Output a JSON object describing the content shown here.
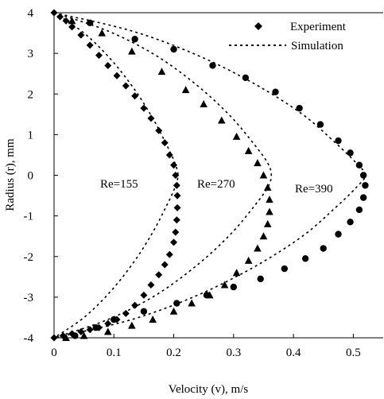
{
  "chart_data": {
    "type": "scatter",
    "xlabel": "Velocity (v), m/s",
    "ylabel": "Radius (r), mm",
    "xlim": [
      0,
      0.55
    ],
    "ylim": [
      -4,
      4
    ],
    "xticks": [
      "0",
      "0.1",
      "0.2",
      "0.3",
      "0.4",
      "0.5"
    ],
    "yticks": [
      "4",
      "3",
      "2",
      "1",
      "0",
      "-1",
      "-2",
      "-3",
      "-4"
    ],
    "legend": {
      "placement": "top-right",
      "experiment_label": "Experiment",
      "simulation_label": "Simulation"
    },
    "annotations": [
      "Re=155",
      "Re=270",
      "Re=390"
    ],
    "series": [
      {
        "name": "Re=155",
        "marker": "diamond",
        "x": [
          0.0,
          0.01,
          0.02,
          0.03,
          0.045,
          0.06,
          0.075,
          0.09,
          0.105,
          0.12,
          0.135,
          0.15,
          0.162,
          0.175,
          0.185,
          0.193,
          0.2,
          0.203,
          0.205,
          0.206,
          0.206,
          0.205,
          0.203,
          0.2,
          0.193,
          0.185,
          0.175,
          0.162,
          0.15,
          0.135,
          0.12,
          0.105,
          0.09,
          0.075,
          0.06,
          0.045,
          0.03,
          0.015,
          0.0
        ],
        "y": [
          4.0,
          3.9,
          3.8,
          3.65,
          3.45,
          3.2,
          2.95,
          2.7,
          2.45,
          2.2,
          1.95,
          1.65,
          1.4,
          1.1,
          0.8,
          0.5,
          0.25,
          0.0,
          -0.25,
          -0.5,
          -0.8,
          -1.1,
          -1.4,
          -1.65,
          -1.95,
          -2.2,
          -2.45,
          -2.7,
          -2.95,
          -3.2,
          -3.4,
          -3.55,
          -3.65,
          -3.75,
          -3.8,
          -3.85,
          -3.9,
          -3.95,
          -4.0
        ]
      },
      {
        "name": "Re=270",
        "marker": "triangle",
        "x": [
          0.03,
          0.08,
          0.13,
          0.18,
          0.22,
          0.25,
          0.28,
          0.305,
          0.325,
          0.34,
          0.35,
          0.357,
          0.36,
          0.36,
          0.357,
          0.35,
          0.34,
          0.325,
          0.305,
          0.285,
          0.26,
          0.23,
          0.2,
          0.165,
          0.13,
          0.09,
          0.05,
          0.02
        ],
        "y": [
          3.8,
          3.5,
          3.05,
          2.55,
          2.1,
          1.75,
          1.35,
          0.95,
          0.6,
          0.3,
          0.0,
          -0.3,
          -0.6,
          -0.9,
          -1.2,
          -1.5,
          -1.8,
          -2.1,
          -2.4,
          -2.7,
          -2.95,
          -3.15,
          -3.35,
          -3.55,
          -3.7,
          -3.85,
          -3.95,
          -4.0
        ]
      },
      {
        "name": "Re=390",
        "marker": "circle",
        "x": [
          0.06,
          0.135,
          0.2,
          0.265,
          0.32,
          0.37,
          0.41,
          0.445,
          0.475,
          0.495,
          0.51,
          0.517,
          0.52,
          0.517,
          0.51,
          0.495,
          0.475,
          0.45,
          0.42,
          0.385,
          0.345,
          0.3,
          0.255,
          0.205,
          0.15,
          0.1,
          0.07,
          0.035
        ],
        "y": [
          3.75,
          3.35,
          3.1,
          2.7,
          2.4,
          2.05,
          1.65,
          1.25,
          0.85,
          0.55,
          0.25,
          0.0,
          -0.25,
          -0.55,
          -0.85,
          -1.15,
          -1.45,
          -1.8,
          -2.05,
          -2.3,
          -2.55,
          -2.75,
          -2.95,
          -3.15,
          -3.35,
          -3.55,
          -3.75,
          -3.95
        ]
      }
    ],
    "simulation": [
      {
        "name": "Re=155",
        "x": [
          0.0,
          0.05,
          0.095,
          0.135,
          0.165,
          0.188,
          0.202,
          0.207,
          0.202,
          0.188,
          0.165,
          0.135,
          0.095,
          0.05,
          0.0
        ],
        "y": [
          4.0,
          3.5,
          2.85,
          2.1,
          1.4,
          0.75,
          0.3,
          0.0,
          -0.3,
          -0.75,
          -1.4,
          -2.1,
          -2.85,
          -3.5,
          -4.0
        ]
      },
      {
        "name": "Re=270",
        "x": [
          0.0,
          0.09,
          0.17,
          0.24,
          0.295,
          0.335,
          0.357,
          0.363,
          0.357,
          0.335,
          0.295,
          0.24,
          0.17,
          0.09,
          0.0
        ],
        "y": [
          4.0,
          3.55,
          2.95,
          2.2,
          1.45,
          0.75,
          0.3,
          0.0,
          -0.3,
          -0.75,
          -1.45,
          -2.2,
          -2.95,
          -3.55,
          -4.0
        ]
      },
      {
        "name": "Re=390",
        "x": [
          0.0,
          0.13,
          0.24,
          0.335,
          0.415,
          0.47,
          0.505,
          0.52,
          0.505,
          0.47,
          0.415,
          0.335,
          0.24,
          0.13,
          0.0
        ],
        "y": [
          4.0,
          3.55,
          2.95,
          2.25,
          1.5,
          0.8,
          0.3,
          0.0,
          -0.3,
          -0.8,
          -1.5,
          -2.25,
          -2.95,
          -3.55,
          -4.0
        ]
      }
    ]
  }
}
